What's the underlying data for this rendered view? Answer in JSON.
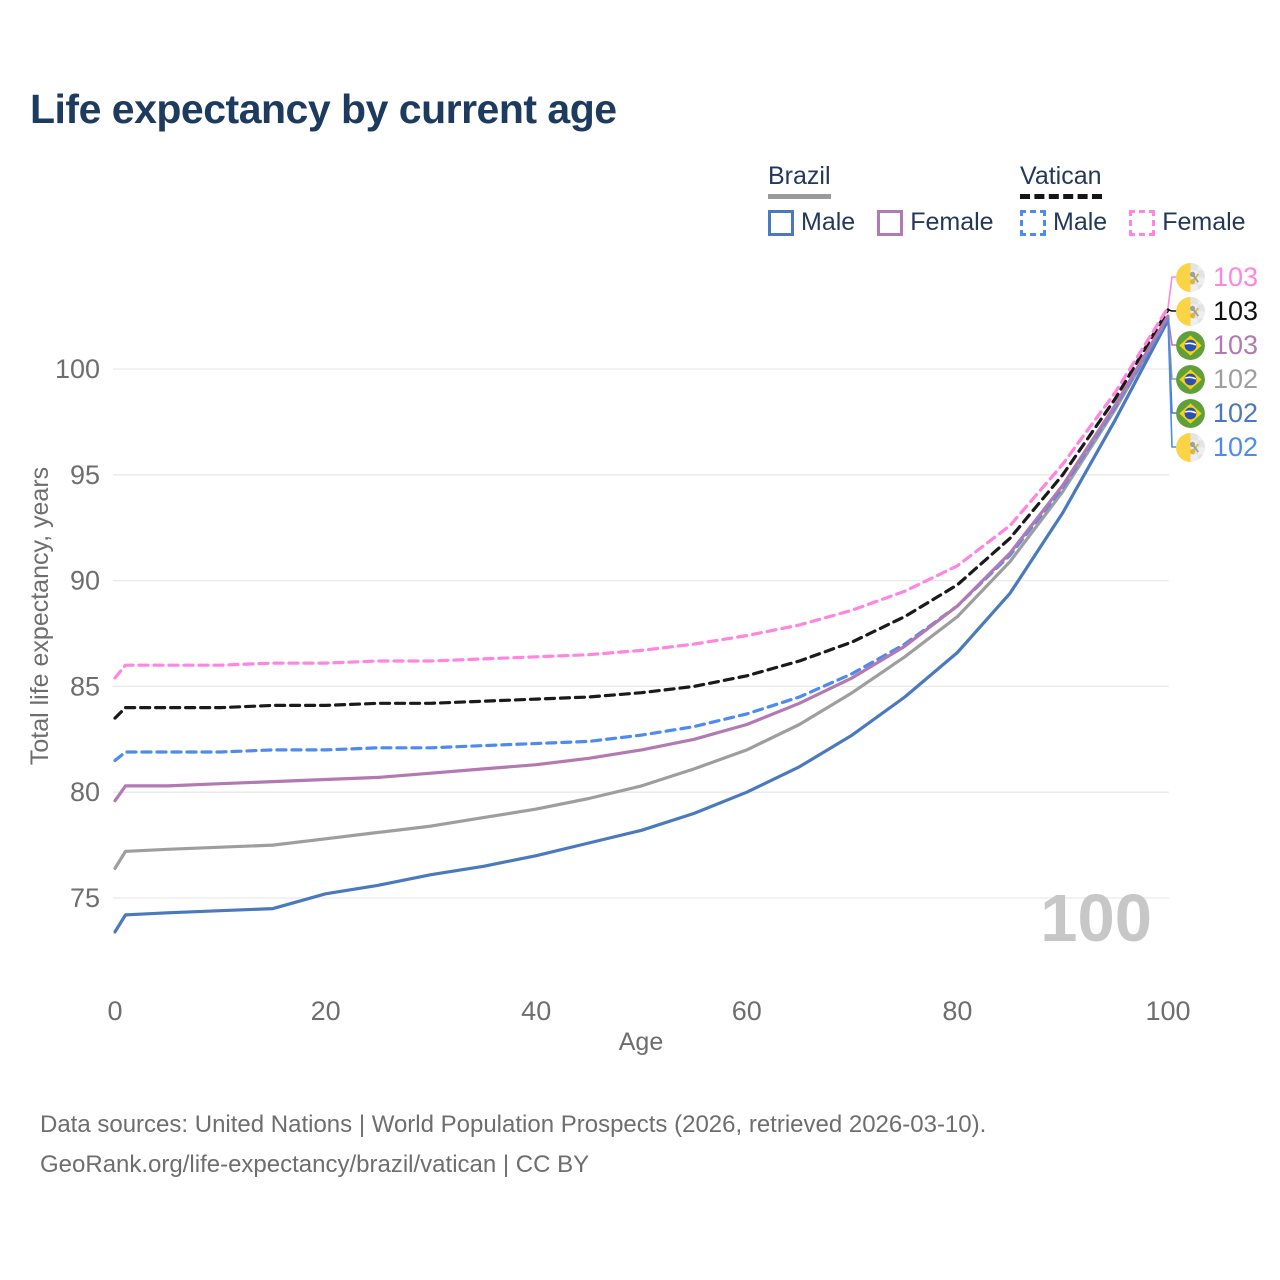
{
  "header": {
    "title": "Life expectancy by current age"
  },
  "legend": {
    "groups": [
      {
        "label": "Brazil",
        "underline_style": "solid",
        "underline_color": "#9a9a9a",
        "items": [
          {
            "label": "Male",
            "color": "#4b79bd",
            "dash": false
          },
          {
            "label": "Female",
            "color": "#b279b2",
            "dash": false
          }
        ]
      },
      {
        "label": "Vatican",
        "underline_style": "dashed",
        "underline_color": "#151515",
        "items": [
          {
            "label": "Male",
            "color": "#4e8bf0",
            "dash": true
          },
          {
            "label": "Female",
            "color": "#ff85e0",
            "dash": true
          }
        ]
      }
    ]
  },
  "chart_data": {
    "type": "line",
    "title": "Life expectancy by current age",
    "xlabel": "Age",
    "ylabel": "Total life expectancy, years",
    "xticks": [
      0,
      20,
      40,
      60,
      80,
      100
    ],
    "yticks": [
      75,
      80,
      85,
      90,
      95,
      100
    ],
    "xlim": [
      0,
      100
    ],
    "ylim": [
      73,
      103
    ],
    "grid": "horizontal",
    "legend_position": "top-right",
    "watermark": "100",
    "x": [
      0,
      1,
      5,
      10,
      15,
      20,
      25,
      30,
      35,
      40,
      45,
      50,
      55,
      60,
      65,
      70,
      75,
      80,
      85,
      90,
      95,
      100
    ],
    "series": [
      {
        "name": "Brazil Male",
        "country": "Brazil",
        "sex": "male",
        "color": "#4b79bd",
        "dash": false,
        "values": [
          73.4,
          74.2,
          74.3,
          74.4,
          74.5,
          75.2,
          75.6,
          76.1,
          76.5,
          77.0,
          77.6,
          78.2,
          79.0,
          80.0,
          81.2,
          82.7,
          84.5,
          86.6,
          89.4,
          93.2,
          97.6,
          102.3
        ]
      },
      {
        "name": "Brazil Female",
        "country": "Brazil",
        "sex": "female",
        "color": "#b279b2",
        "dash": false,
        "values": [
          79.6,
          80.3,
          80.3,
          80.4,
          80.5,
          80.6,
          80.7,
          80.9,
          81.1,
          81.3,
          81.6,
          82.0,
          82.5,
          83.2,
          84.2,
          85.4,
          86.9,
          88.8,
          91.3,
          94.5,
          98.3,
          102.5
        ]
      },
      {
        "name": "Brazil",
        "country": "Brazil",
        "sex": "total",
        "color": "#9e9e9e",
        "dash": false,
        "values": [
          76.4,
          77.2,
          77.3,
          77.4,
          77.5,
          77.8,
          78.1,
          78.4,
          78.8,
          79.2,
          79.7,
          80.3,
          81.1,
          82.0,
          83.2,
          84.7,
          86.4,
          88.3,
          90.9,
          94.2,
          98.1,
          102.4
        ]
      },
      {
        "name": "Vatican Male",
        "country": "Vatican",
        "sex": "male",
        "color": "#4e8bf0",
        "dash": true,
        "values": [
          81.5,
          81.9,
          81.9,
          81.9,
          82.0,
          82.0,
          82.1,
          82.1,
          82.2,
          82.3,
          82.4,
          82.7,
          83.1,
          83.7,
          84.5,
          85.6,
          87.0,
          88.8,
          91.2,
          94.4,
          98.2,
          102.4
        ]
      },
      {
        "name": "Vatican Female",
        "country": "Vatican",
        "sex": "female",
        "color": "#ff85e0",
        "dash": true,
        "values": [
          85.4,
          86.0,
          86.0,
          86.0,
          86.1,
          86.1,
          86.2,
          86.2,
          86.3,
          86.4,
          86.5,
          86.7,
          87.0,
          87.4,
          87.9,
          88.6,
          89.5,
          90.7,
          92.6,
          95.5,
          98.9,
          102.9
        ]
      },
      {
        "name": "Vatican",
        "country": "Vatican",
        "sex": "total",
        "color": "#1a1a1a",
        "dash": true,
        "values": [
          83.5,
          84.0,
          84.0,
          84.0,
          84.1,
          84.1,
          84.2,
          84.2,
          84.3,
          84.4,
          84.5,
          84.7,
          85.0,
          85.5,
          86.2,
          87.1,
          88.3,
          89.8,
          92.0,
          95.0,
          98.6,
          102.8
        ]
      }
    ],
    "draw_order": [
      2,
      0,
      3,
      1,
      5,
      4
    ]
  },
  "right_labels": {
    "rows": [
      {
        "flag": "vatican-flag-icon",
        "value": "103",
        "color": "#ff85e0",
        "series_index": 4,
        "series": "Vatican Female"
      },
      {
        "flag": "vatican-flag-icon",
        "value": "103",
        "color": "#111111",
        "series_index": 5,
        "series": "Vatican"
      },
      {
        "flag": "brazil-flag-icon",
        "value": "103",
        "color": "#b279b2",
        "series_index": 1,
        "series": "Brazil Female"
      },
      {
        "flag": "brazil-flag-icon",
        "value": "102",
        "color": "#9e9e9e",
        "series_index": 2,
        "series": "Brazil"
      },
      {
        "flag": "brazil-flag-icon",
        "value": "102",
        "color": "#4b79bd",
        "series_index": 0,
        "series": "Brazil Male"
      },
      {
        "flag": "vatican-flag-icon",
        "value": "102",
        "color": "#4e8bf0",
        "series_index": 3,
        "series": "Vatican Male"
      }
    ]
  },
  "footer": {
    "line1": "Data sources: United Nations | World Population Prospects (2026, retrieved 2026-03-10).",
    "line2": "GeoRank.org/life-expectancy/brazil/vatican | CC BY"
  }
}
